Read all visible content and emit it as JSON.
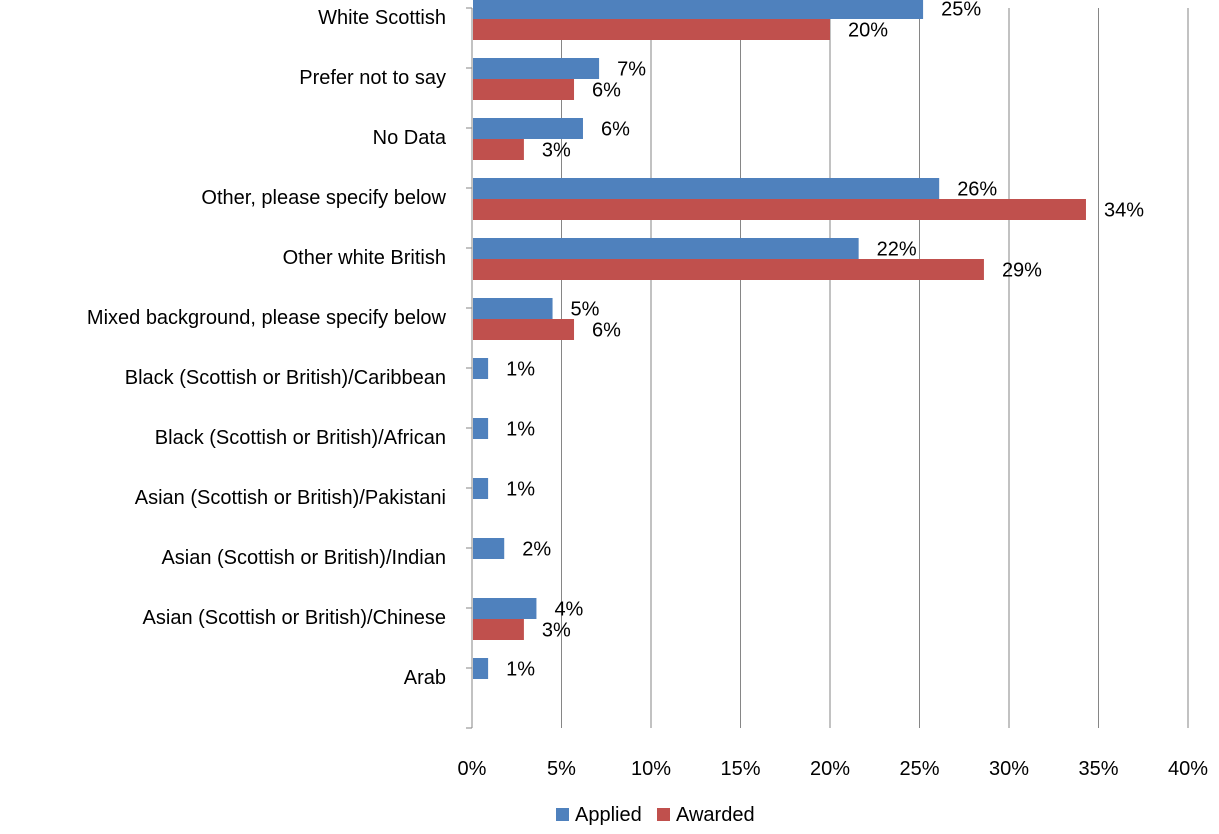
{
  "chart_data": {
    "type": "bar",
    "orientation": "horizontal",
    "title": "",
    "xlabel": "",
    "ylabel": "",
    "categories": [
      "White Scottish",
      "Prefer not to say",
      "No Data",
      "Other, please specify below",
      "Other white British",
      "Mixed background, please specify below",
      "Black (Scottish or British)/Caribbean",
      "Black (Scottish or British)/African",
      "Asian (Scottish or British)/Pakistani",
      "Asian (Scottish or British)/Indian",
      "Asian (Scottish or British)/Chinese",
      "Arab"
    ],
    "series": [
      {
        "name": "Applied",
        "color": "#4f81bd",
        "values": [
          25.2,
          7.1,
          6.2,
          26.1,
          21.6,
          4.5,
          0.9,
          0.9,
          0.9,
          1.8,
          3.6,
          0.9
        ],
        "labels": [
          "25%",
          "7%",
          "6%",
          "26%",
          "22%",
          "5%",
          "1%",
          "1%",
          "1%",
          "2%",
          "4%",
          "1%"
        ]
      },
      {
        "name": "Awarded",
        "color": "#c0504d",
        "values": [
          20.0,
          5.7,
          2.9,
          34.3,
          28.6,
          5.7,
          null,
          null,
          null,
          null,
          2.9,
          null
        ],
        "labels": [
          "20%",
          "6%",
          "3%",
          "34%",
          "29%",
          "6%",
          null,
          null,
          null,
          null,
          "3%",
          null
        ]
      }
    ],
    "xlim": [
      0,
      40
    ],
    "xticks": [
      0,
      5,
      10,
      15,
      20,
      25,
      30,
      35,
      40
    ],
    "xtick_labels": [
      "0%",
      "5%",
      "10%",
      "15%",
      "20%",
      "25%",
      "30%",
      "35%",
      "40%"
    ],
    "grid": true,
    "legend_position": "bottom"
  }
}
